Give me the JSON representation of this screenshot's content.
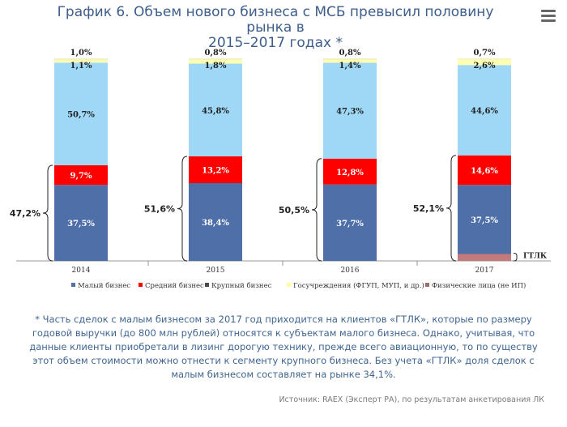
{
  "header": {
    "title_line1": "График 6. Объем нового бизнеса с МСБ превысил половину рынка в",
    "title_line2": "2015–2017 годах *"
  },
  "colors": {
    "small": "#4e6fa8",
    "medium": "#ff0000",
    "large": "#c47a7a",
    "gov": "#ffffc0",
    "phys": "#ffc000",
    "small_light": "#9fd8f7",
    "gtlk": "#c47a7a"
  },
  "chart_data": {
    "type": "bar",
    "stacked": true,
    "categories": [
      "2014",
      "2015",
      "2016",
      "2017"
    ],
    "series": [
      {
        "name": "Малый бизнес",
        "values": [
          37.5,
          38.4,
          37.7,
          37.5
        ]
      },
      {
        "name": "Средний бизнес",
        "values": [
          9.7,
          13.2,
          12.8,
          14.6
        ]
      },
      {
        "name": "Крупный бизнес",
        "values": [
          50.7,
          45.8,
          47.3,
          44.6
        ]
      },
      {
        "name": "Госучреждения (ФГУП,  МУП, и др.)",
        "values": [
          1.1,
          1.8,
          1.4,
          2.6
        ]
      },
      {
        "name": "Физические лица (не ИП)",
        "values": [
          1.0,
          0.8,
          0.8,
          0.7
        ]
      }
    ],
    "labels": {
      "small": [
        "37,5%",
        "38,4%",
        "37,7%",
        "37,5%"
      ],
      "medium": [
        "9,7%",
        "13,2%",
        "12,8%",
        "14,6%"
      ],
      "large": [
        "50,7%",
        "45,8%",
        "47,3%",
        "44,6%"
      ],
      "gov": [
        "1,1%",
        "1,8%",
        "1,4%",
        "2,6%"
      ],
      "phys": [
        "1,0%",
        "0,8%",
        "0,8%",
        "0,7%"
      ]
    },
    "sme_totals": [
      "47,2%",
      "51,6%",
      "50,5%",
      "52,1%"
    ],
    "gtlk_label": "ГТЛК",
    "gtlk_value": 3.4,
    "ylim": [
      0,
      100
    ],
    "legend_position": "bottom"
  },
  "footnote": "* Часть сделок с малым бизнесом за 2017 год приходится на клиентов «ГТЛК», которые по размеру годовой выручки (до 800 млн рублей) относятся к субъектам малого бизнеса. Однако, учитывая, что данные клиенты приобретали в лизинг дорогую технику, прежде всего авиационную, то по существу этот объем стоимости можно отнести к сегменту крупного бизнеса. Без учета «ГТЛК» доля сделок с малым бизнесом составляет на рынке 34,1%.",
  "source": "Источник: RAEX (Эксперт РА), по результатам анкетирования ЛК"
}
